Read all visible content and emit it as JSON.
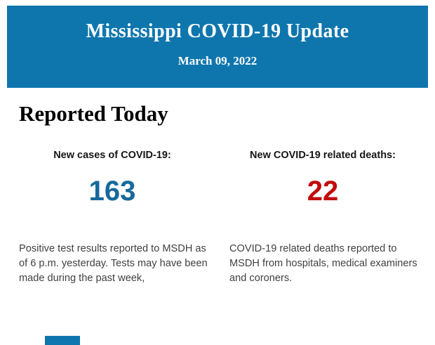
{
  "page": {
    "background": "#ffffff"
  },
  "header": {
    "title": "Mississippi COVID-19 Update",
    "date": "March 09, 2022",
    "background": "#0e76ad",
    "text_color": "#ffffff"
  },
  "main": {
    "section_title": "Reported Today",
    "stats": [
      {
        "label": "New cases of COVID-19:",
        "value": "163",
        "value_color": "#16699c",
        "description": "Positive test results reported to MSDH as of 6 p.m. yesterday. Tests may have been made during the past week,"
      },
      {
        "label": "New COVID-19 related deaths:",
        "value": "22",
        "value_color": "#c20b0b",
        "description": "COVID-19 related deaths reported to MSDH from hospitals, medical examiners and coroners."
      }
    ]
  },
  "footer": {
    "bar_color": "#0e76ad"
  }
}
